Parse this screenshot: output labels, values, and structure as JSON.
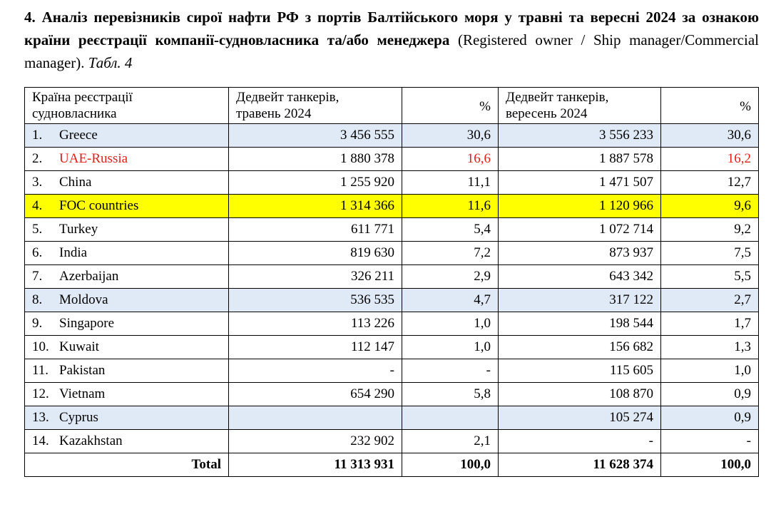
{
  "heading": {
    "bold": "4. Аналіз перевізників сирої нафти РФ з портів Балтійського моря у травні та вересні 2024 за ознакою країни реєстрації компанії-судновласника та/або менеджера",
    "normal": "(Registered owner / Ship manager/Commercial manager).",
    "italic": "Табл. 4"
  },
  "table": {
    "header": [
      [
        "Країна реєстрації",
        "судновласника"
      ],
      [
        "Дедвейт танкерів,",
        "травень 2024"
      ],
      [
        "%"
      ],
      [
        "Дедвейт танкерів,",
        "вересень 2024"
      ],
      [
        "%"
      ]
    ],
    "rows": [
      {
        "cells": [
          "1.",
          "Greece",
          "3 456 555",
          "30,6",
          "3 556 233",
          "30,6"
        ],
        "fill": "#dfeaf6"
      },
      {
        "cells": [
          "2.",
          "UAE-Russia",
          "1 880 378",
          "16,6",
          "1 887 578",
          "16,2"
        ],
        "text_color": "#e0201b"
      },
      {
        "cells": [
          "3.",
          "China",
          "1 255 920",
          "11,1",
          "1 471 507",
          "12,7"
        ]
      },
      {
        "cells": [
          "4.",
          "FOC countries",
          "1 314 366",
          "11,6",
          "1 120 966",
          "9,6"
        ],
        "fill": "#ffff00"
      },
      {
        "cells": [
          "5.",
          "Turkey",
          "611 771",
          "5,4",
          "1 072 714",
          "9,2"
        ]
      },
      {
        "cells": [
          "6.",
          "India",
          "819 630",
          "7,2",
          "873 937",
          "7,5"
        ]
      },
      {
        "cells": [
          "7.",
          "Azerbaijan",
          "326 211",
          "2,9",
          "643 342",
          "5,5"
        ]
      },
      {
        "cells": [
          "8.",
          "Moldova",
          "536 535",
          "4,7",
          "317 122",
          "2,7"
        ],
        "fill": "#dfeaf6"
      },
      {
        "cells": [
          "9.",
          "Singapore",
          "113 226",
          "1,0",
          "198 544",
          "1,7"
        ]
      },
      {
        "cells": [
          "10.",
          "Kuwait",
          "112 147",
          "1,0",
          "156 682",
          "1,3"
        ]
      },
      {
        "cells": [
          "11.",
          "Pakistan",
          "-",
          "-",
          "115 605",
          "1,0"
        ]
      },
      {
        "cells": [
          "12.",
          "Vietnam",
          "654 290",
          "5,8",
          "108 870",
          "0,9"
        ]
      },
      {
        "cells": [
          "13.",
          "Cyprus",
          null,
          null,
          "105 274",
          "0,9"
        ],
        "fill": "#dfeaf6"
      },
      {
        "cells": [
          "14.",
          "Kazakhstan",
          "232 902",
          "2,1",
          "-",
          "-"
        ]
      }
    ],
    "total": [
      "Total",
      "11 313 931",
      "100,0",
      "11 628 374",
      "100,0"
    ]
  }
}
